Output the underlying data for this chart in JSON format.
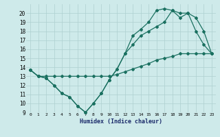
{
  "xlabel": "Humidex (Indice chaleur)",
  "bg_color": "#ceeaea",
  "grid_color": "#aed0d0",
  "line_color": "#1a7060",
  "xlim": [
    0,
    23
  ],
  "ylim": [
    9,
    21
  ],
  "xticks": [
    0,
    1,
    2,
    3,
    4,
    5,
    6,
    7,
    8,
    9,
    10,
    11,
    12,
    13,
    14,
    15,
    16,
    17,
    18,
    19,
    20,
    21,
    22,
    23
  ],
  "yticks": [
    9,
    10,
    11,
    12,
    13,
    14,
    15,
    16,
    17,
    18,
    19,
    20
  ],
  "line1_x": [
    0,
    1,
    2,
    3,
    4,
    5,
    6,
    7,
    8,
    9,
    10,
    11,
    12,
    13,
    14,
    15,
    16,
    17,
    18,
    19,
    20,
    21,
    22,
    23
  ],
  "line1_y": [
    13.7,
    13.0,
    13.0,
    13.0,
    13.0,
    13.0,
    13.0,
    13.0,
    13.0,
    13.0,
    13.0,
    13.2,
    13.5,
    13.8,
    14.1,
    14.4,
    14.8,
    15.0,
    15.2,
    15.5,
    15.5,
    15.5,
    15.5,
    15.5
  ],
  "line2_x": [
    0,
    1,
    2,
    3,
    4,
    5,
    6,
    7,
    8,
    9,
    10,
    11,
    12,
    13,
    14,
    15,
    16,
    17,
    18,
    19,
    20,
    21,
    22,
    23
  ],
  "line2_y": [
    13.7,
    13.0,
    12.8,
    12.0,
    11.1,
    10.7,
    9.7,
    9.0,
    10.0,
    11.1,
    12.6,
    13.8,
    15.5,
    17.5,
    18.2,
    19.0,
    20.3,
    20.5,
    20.3,
    19.5,
    20.0,
    18.0,
    16.5,
    15.5
  ],
  "line3_x": [
    0,
    1,
    2,
    3,
    4,
    5,
    6,
    7,
    8,
    9,
    10,
    11,
    12,
    13,
    14,
    15,
    16,
    17,
    18,
    19,
    20,
    21,
    22,
    23
  ],
  "line3_y": [
    13.7,
    13.0,
    12.8,
    12.0,
    11.1,
    10.7,
    9.7,
    9.0,
    10.0,
    11.1,
    12.6,
    13.8,
    15.5,
    16.5,
    17.5,
    18.0,
    18.5,
    19.0,
    20.3,
    20.0,
    20.0,
    19.5,
    18.0,
    15.5
  ]
}
